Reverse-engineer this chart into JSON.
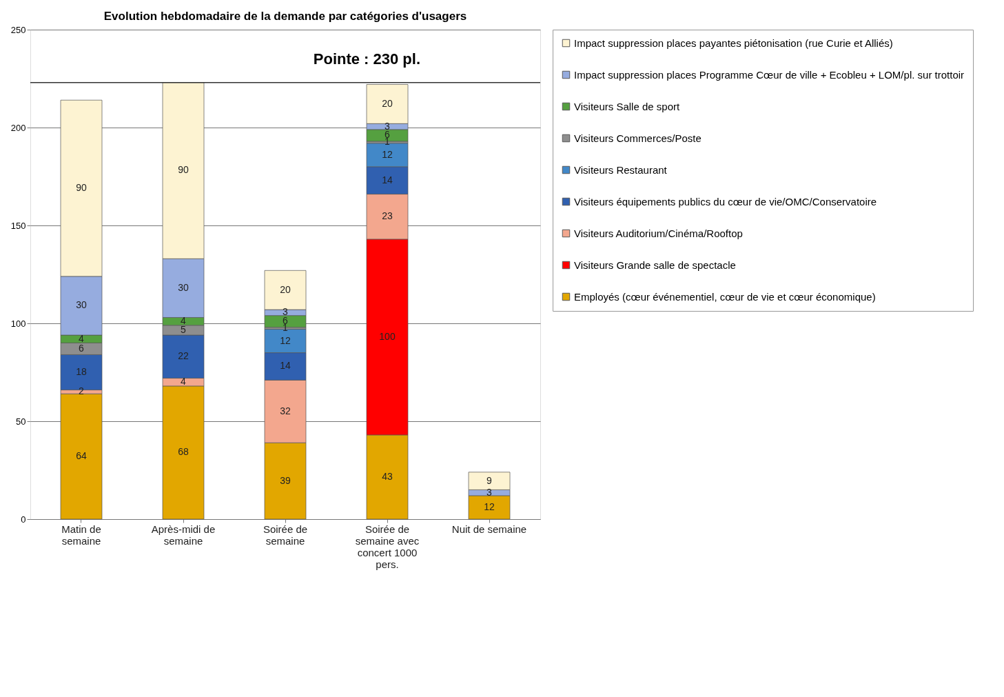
{
  "chart_data": {
    "type": "bar",
    "stacked": true,
    "title": "Evolution hebdomadaire de la demande par catégories d'usagers",
    "categories": [
      "Matin de semaine",
      "Après-midi de semaine",
      "Soirée de semaine",
      "Soirée de semaine avec concert 1000 pers.",
      "Nuit de semaine"
    ],
    "series": [
      {
        "name": "Employés (cœur événementiel, cœur de vie et cœur économique)",
        "color": "#e2a700",
        "values": [
          64,
          68,
          39,
          43,
          12
        ]
      },
      {
        "name": "Visiteurs Grande salle de spectacle",
        "color": "#ff0000",
        "values": [
          null,
          null,
          null,
          100,
          null
        ]
      },
      {
        "name": "Visiteurs Auditorium/Cinéma/Rooftop",
        "color": "#f3a78e",
        "values": [
          2,
          4,
          32,
          23,
          null
        ]
      },
      {
        "name": "Visiteurs équipements publics du cœur de vie/OMC/Conservatoire",
        "color": "#3060b0",
        "values": [
          18,
          22,
          14,
          14,
          null
        ]
      },
      {
        "name": "Visiteurs Restaurant",
        "color": "#4288c8",
        "values": [
          null,
          null,
          12,
          12,
          null
        ]
      },
      {
        "name": "Visiteurs Commerces/Poste",
        "color": "#8e8e8e",
        "values": [
          6,
          5,
          1,
          1,
          null
        ]
      },
      {
        "name": "Visiteurs Salle de sport",
        "color": "#55a040",
        "values": [
          4,
          4,
          6,
          6,
          null
        ]
      },
      {
        "name": "Impact suppression places Programme Cœur de ville + Ecobleu + LOM/pl. sur trottoir",
        "color": "#96acdf",
        "values": [
          30,
          30,
          3,
          3,
          3
        ]
      },
      {
        "name": "Impact suppression places payantes piétonisation (rue Curie et Alliés)",
        "color": "#fdf3d2",
        "values": [
          90,
          90,
          20,
          20,
          9
        ]
      }
    ],
    "ylim": [
      0,
      250
    ],
    "yticks": [
      0,
      50,
      100,
      150,
      200,
      250
    ],
    "grid": "y",
    "legend": "right",
    "data_labels": true,
    "ref_lines": [
      {
        "axis": "y",
        "value": 223
      }
    ],
    "annotations": [
      "Pointe : 230 pl."
    ]
  }
}
